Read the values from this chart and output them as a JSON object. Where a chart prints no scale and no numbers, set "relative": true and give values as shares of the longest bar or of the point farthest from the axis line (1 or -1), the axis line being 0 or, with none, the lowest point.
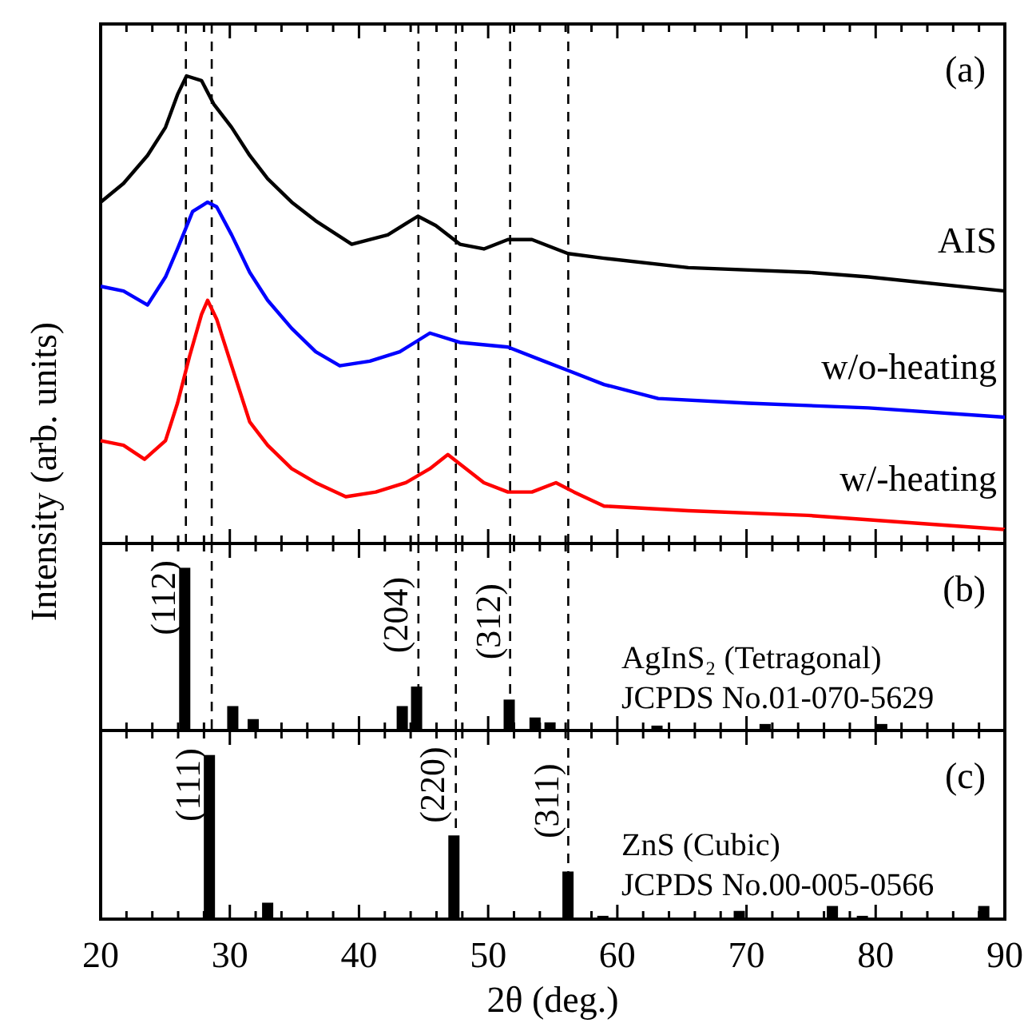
{
  "chart_data": [
    {
      "type": "line",
      "relative": true,
      "xlim": [
        20,
        90
      ],
      "xticks": [
        20,
        {
          "value": 22,
          "label": null
        },
        {
          "value": 24,
          "label": null
        },
        {
          "value": 26,
          "label": null
        },
        {
          "value": 28,
          "label": null
        },
        30,
        {
          "value": 32,
          "label": null
        },
        {
          "value": 34,
          "label": null
        },
        {
          "value": 36,
          "label": null
        },
        {
          "value": 38,
          "label": null
        },
        40,
        {
          "value": 42,
          "label": null
        },
        {
          "value": 44,
          "label": null
        },
        {
          "value": 46,
          "label": null
        },
        {
          "value": 48,
          "label": null
        },
        50,
        {
          "value": 52,
          "label": null
        },
        {
          "value": 54,
          "label": null
        },
        {
          "value": 56,
          "label": null
        },
        {
          "value": 58,
          "label": null
        },
        60,
        {
          "value": 62,
          "label": null
        },
        {
          "value": 64,
          "label": null
        },
        {
          "value": 66,
          "label": null
        },
        {
          "value": 68,
          "label": null
        },
        70,
        {
          "value": 72,
          "label": null
        },
        {
          "value": 74,
          "label": null
        },
        {
          "value": 76,
          "label": null
        },
        {
          "value": 78,
          "label": null
        },
        80,
        {
          "value": 82,
          "label": null
        },
        {
          "value": 84,
          "label": null
        },
        {
          "value": 86,
          "label": null
        },
        {
          "value": 88,
          "label": null
        },
        90
      ],
      "tick_labels": false,
      "ylabel": "Intensity (arb. units)",
      "grid": false,
      "marker": "none",
      "line_style": "solid",
      "annotations": [
        "(a)"
      ],
      "ref_lines": [
        {
          "axis": "x",
          "value": 26.6,
          "color": "#000000",
          "line_style": "dashed"
        },
        {
          "axis": "x",
          "value": 28.6,
          "color": "#000000",
          "line_style": "dashed"
        },
        {
          "axis": "x",
          "value": 44.6,
          "color": "#000000",
          "line_style": "dashed"
        },
        {
          "axis": "x",
          "value": 47.5,
          "color": "#000000",
          "line_style": "dashed"
        },
        {
          "axis": "x",
          "value": 51.7,
          "color": "#000000",
          "line_style": "dashed"
        },
        {
          "axis": "x",
          "value": 56.2,
          "color": "#000000",
          "line_style": "dashed"
        }
      ],
      "series": [
        {
          "name": "AIS",
          "color": "#000000",
          "x": [
            20,
            21.77,
            23.63,
            25.02,
            25.95,
            26.65,
            27.81,
            28.75,
            30.14,
            31.54,
            32.93,
            34.79,
            36.65,
            39.44,
            42.23,
            44.56,
            45.95,
            47.81,
            49.67,
            51.53,
            53.39,
            56.18,
            58.97,
            65.49,
            74.79,
            79.44,
            90
          ],
          "values": [
            0.73,
            0.77,
            0.83,
            0.89,
            0.96,
            1.0,
            0.99,
            0.94,
            0.89,
            0.83,
            0.78,
            0.73,
            0.69,
            0.64,
            0.66,
            0.7,
            0.68,
            0.64,
            0.63,
            0.65,
            0.65,
            0.62,
            0.61,
            0.59,
            0.58,
            0.57,
            0.54
          ]
        },
        {
          "name": "w/o-heating",
          "color": "#0000ff",
          "x": [
            20,
            21.77,
            23.63,
            25.02,
            25.95,
            27.12,
            28.28,
            28.98,
            30.14,
            31.54,
            32.93,
            34.79,
            36.65,
            38.51,
            40.84,
            43.16,
            45.49,
            47.81,
            51.53,
            54.32,
            56.18,
            58.97,
            63.16,
            70.14,
            79.44,
            90
          ],
          "values": [
            0.55,
            0.54,
            0.51,
            0.57,
            0.63,
            0.71,
            0.73,
            0.72,
            0.66,
            0.58,
            0.52,
            0.46,
            0.41,
            0.38,
            0.39,
            0.41,
            0.45,
            0.43,
            0.42,
            0.39,
            0.37,
            0.34,
            0.31,
            0.3,
            0.29,
            0.27
          ]
        },
        {
          "name": "w/-heating",
          "color": "#ff0000",
          "x": [
            20,
            21.77,
            23.4,
            25.02,
            25.95,
            26.88,
            27.81,
            28.28,
            28.98,
            30.14,
            31.54,
            32.93,
            34.79,
            36.65,
            38.98,
            41.3,
            43.63,
            45.49,
            46.88,
            47.81,
            49.67,
            51.53,
            53.39,
            55.25,
            56.65,
            58.97,
            65.49,
            74.79,
            90
          ],
          "values": [
            0.22,
            0.21,
            0.18,
            0.22,
            0.3,
            0.4,
            0.49,
            0.52,
            0.48,
            0.38,
            0.26,
            0.21,
            0.16,
            0.13,
            0.1,
            0.11,
            0.13,
            0.16,
            0.19,
            0.17,
            0.13,
            0.11,
            0.11,
            0.13,
            0.11,
            0.08,
            0.07,
            0.06,
            0.03
          ]
        }
      ]
    },
    {
      "type": "bar",
      "relative": true,
      "xlim": [
        20,
        90
      ],
      "xticks": [
        20,
        {
          "value": 22,
          "label": null
        },
        {
          "value": 24,
          "label": null
        },
        {
          "value": 26,
          "label": null
        },
        {
          "value": 28,
          "label": null
        },
        30,
        {
          "value": 32,
          "label": null
        },
        {
          "value": 34,
          "label": null
        },
        {
          "value": 36,
          "label": null
        },
        {
          "value": 38,
          "label": null
        },
        40,
        {
          "value": 42,
          "label": null
        },
        {
          "value": 44,
          "label": null
        },
        {
          "value": 46,
          "label": null
        },
        {
          "value": 48,
          "label": null
        },
        50,
        {
          "value": 52,
          "label": null
        },
        {
          "value": 54,
          "label": null
        },
        {
          "value": 56,
          "label": null
        },
        {
          "value": 58,
          "label": null
        },
        60,
        {
          "value": 62,
          "label": null
        },
        {
          "value": 64,
          "label": null
        },
        {
          "value": 66,
          "label": null
        },
        {
          "value": 68,
          "label": null
        },
        70,
        {
          "value": 72,
          "label": null
        },
        {
          "value": 74,
          "label": null
        },
        {
          "value": 76,
          "label": null
        },
        {
          "value": 78,
          "label": null
        },
        80,
        {
          "value": 82,
          "label": null
        },
        {
          "value": 84,
          "label": null
        },
        {
          "value": 86,
          "label": null
        },
        {
          "value": 88,
          "label": null
        },
        90
      ],
      "tick_labels": false,
      "grid": false,
      "annotations": [
        "(b)",
        "AgInS₂ (Tetragonal)",
        "JCPDS No.01-070-5629",
        {
          "text": "(112)",
          "x": 26.51,
          "y": 1.0
        },
        {
          "text": "(204)",
          "x": 44.46,
          "y": 0.27
        },
        {
          "text": "(312)",
          "x": 51.63,
          "y": 0.19
        }
      ],
      "ref_lines": [
        {
          "axis": "x",
          "value": 28.6,
          "color": "#000000",
          "line_style": "dashed"
        },
        {
          "axis": "x",
          "value": 44.6,
          "color": "#000000",
          "line_style": "dashed"
        },
        {
          "axis": "x",
          "value": 47.5,
          "color": "#000000",
          "line_style": "dashed"
        },
        {
          "axis": "x",
          "value": 51.7,
          "color": "#000000",
          "line_style": "dashed"
        },
        {
          "axis": "x",
          "value": 56.2,
          "color": "#000000",
          "line_style": "dashed"
        }
      ],
      "x": [
        26.51,
        30.23,
        31.81,
        43.35,
        44.46,
        51.63,
        53.63,
        54.79,
        63.07,
        71.44,
        80.47
      ],
      "values": [
        1.0,
        0.15,
        0.07,
        0.15,
        0.27,
        0.19,
        0.08,
        0.05,
        0.03,
        0.04,
        0.04
      ],
      "color": "#000000"
    },
    {
      "type": "bar",
      "relative": true,
      "xlim": [
        20,
        90
      ],
      "xticks": [
        20,
        {
          "value": 22,
          "label": null
        },
        {
          "value": 24,
          "label": null
        },
        {
          "value": 26,
          "label": null
        },
        {
          "value": 28,
          "label": null
        },
        30,
        {
          "value": 32,
          "label": null
        },
        {
          "value": 34,
          "label": null
        },
        {
          "value": 36,
          "label": null
        },
        {
          "value": 38,
          "label": null
        },
        40,
        {
          "value": 42,
          "label": null
        },
        {
          "value": 44,
          "label": null
        },
        {
          "value": 46,
          "label": null
        },
        {
          "value": 48,
          "label": null
        },
        50,
        {
          "value": 52,
          "label": null
        },
        {
          "value": 54,
          "label": null
        },
        {
          "value": 56,
          "label": null
        },
        {
          "value": 58,
          "label": null
        },
        60,
        {
          "value": 62,
          "label": null
        },
        {
          "value": 64,
          "label": null
        },
        {
          "value": 66,
          "label": null
        },
        {
          "value": 68,
          "label": null
        },
        70,
        {
          "value": 72,
          "label": null
        },
        {
          "value": 74,
          "label": null
        },
        {
          "value": 76,
          "label": null
        },
        {
          "value": 78,
          "label": null
        },
        80,
        {
          "value": 82,
          "label": null
        },
        {
          "value": 84,
          "label": null
        },
        {
          "value": 86,
          "label": null
        },
        {
          "value": 88,
          "label": null
        },
        90
      ],
      "tick_labels": "x",
      "xlabel": "2θ (deg.)",
      "grid": false,
      "annotations": [
        "(c)",
        "ZnS (Cubic)",
        "JCPDS No.00-005-0566",
        {
          "text": "(111)",
          "x": 28.42,
          "y": 1.0
        },
        {
          "text": "(220)",
          "x": 47.35,
          "y": 0.51
        },
        {
          "text": "(311)",
          "x": 56.18,
          "y": 0.29
        }
      ],
      "ref_lines": [
        {
          "axis": "x",
          "value": 47.5,
          "color": "#000000",
          "line_style": "dashed"
        },
        {
          "axis": "x",
          "value": 56.2,
          "color": "#000000",
          "line_style": "dashed"
        }
      ],
      "x": [
        28.42,
        32.93,
        47.35,
        56.18,
        58.88,
        69.44,
        76.65,
        78.97,
        88.37
      ],
      "values": [
        1.0,
        0.1,
        0.51,
        0.29,
        0.02,
        0.05,
        0.08,
        0.02,
        0.08
      ],
      "color": "#000000"
    }
  ]
}
